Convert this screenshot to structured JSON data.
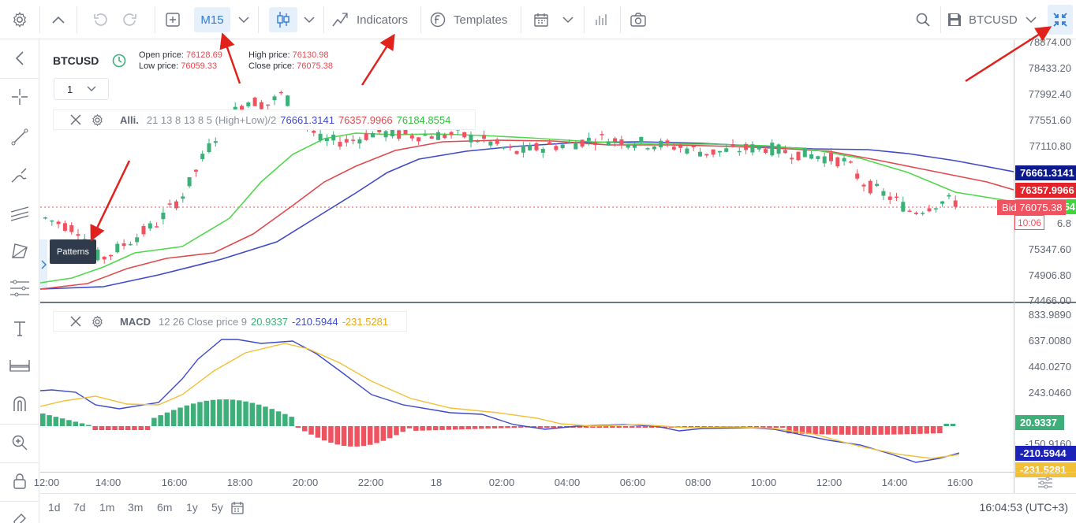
{
  "toolbar": {
    "timeframe": "M15",
    "indicators_label": "Indicators",
    "templates_label": "Templates",
    "symbol": "BTCUSD"
  },
  "chart_header": {
    "symbol": "BTCUSD",
    "open_label": "Open price:",
    "open_value": "76128.69",
    "low_label": "Low price:",
    "low_value": "76059.33",
    "high_label": "High price:",
    "high_value": "76130.98",
    "close_label": "Close price:",
    "close_value": "76075.38",
    "multiplier": "1"
  },
  "alligator_legend": {
    "name": "Alli.",
    "params": "21 13 8 13 8 5 (High+Low)/2",
    "jaw": "76661.3141",
    "teeth": "76357.9966",
    "lips": "76184.8554"
  },
  "macd_legend": {
    "name": "MACD",
    "params": "12 26 Close price 9",
    "hist": "20.9337",
    "macd": "-210.5944",
    "signal": "-231.5281"
  },
  "tooltip": {
    "patterns": "Patterns"
  },
  "price_axis": {
    "ticks": [
      "78874.00",
      "78433.20",
      "77992.40",
      "77551.60",
      "77110.80",
      "75347.60",
      "74906.80",
      "74466.00"
    ],
    "tag_jaw": "76661.3141",
    "tag_teeth": "76357.9966",
    "tag_bid": "Bid 76075.38",
    "tag_lips_partial": "54",
    "tag_partial_price": "6.8",
    "tag_countdown": "10:06"
  },
  "macd_axis": {
    "ticks": [
      "833.9890",
      "637.0080",
      "440.0270",
      "243.0460"
    ],
    "partial_tick": "-150.9160",
    "tag_hist": "20.9337",
    "tag_macd": "-210.5944",
    "tag_signal": "-231.5281"
  },
  "time_axis": {
    "labels": [
      "12:00",
      "14:00",
      "16:00",
      "18:00",
      "20:00",
      "22:00",
      "18",
      "02:00",
      "04:00",
      "06:00",
      "08:00",
      "10:00",
      "12:00",
      "14:00",
      "16:00"
    ]
  },
  "bottom": {
    "ranges": [
      "1d",
      "7d",
      "1m",
      "3m",
      "6m",
      "1y",
      "5y"
    ],
    "clock": "16:04:53 (UTC+3)"
  },
  "colors": {
    "bull": "#3db07a",
    "bear": "#ef5360",
    "jaw": "#3f49c7",
    "teeth": "#e0494e",
    "lips": "#4fd84b",
    "signal": "#f2c037",
    "accent": "#2f7bd6"
  },
  "chart_data": [
    {
      "type": "candlestick",
      "title": "BTCUSD",
      "ylim": [
        74466.0,
        78874.0
      ],
      "series": [
        {
          "name": "Alli.",
          "values": [
            76661.3141,
            76357.9966,
            76184.8554
          ]
        }
      ]
    },
    {
      "type": "bar",
      "title": "MACD",
      "ylim": [
        -250,
        833.989
      ],
      "series": [
        {
          "name": "MACD",
          "values": [
            20.9337,
            -210.5944,
            -231.5281
          ]
        }
      ]
    }
  ]
}
